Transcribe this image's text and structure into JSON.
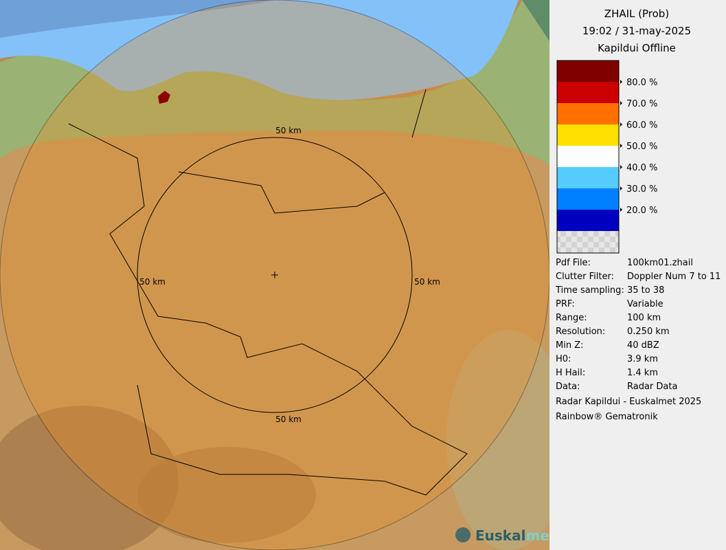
{
  "header": {
    "lines": [
      "ZHAIL (Prob)",
      "19:02 / 31-may-2025",
      "Kapildui Offline"
    ]
  },
  "legend": {
    "bands": [
      "#800000",
      "#cc0000",
      "#ff7000",
      "#ffe000",
      "#ffffff",
      "#55ccff",
      "#0080ff",
      "#0000c0"
    ],
    "labels": [
      "80.0 %",
      "70.0 %",
      "60.0 %",
      "50.0 %",
      "40.0 %",
      "30.0 %",
      "20.0 %"
    ]
  },
  "info": [
    [
      "Pdf File:",
      "100km01.zhail"
    ],
    [
      "Clutter Filter:",
      "Doppler Num 7 to 11"
    ],
    [
      "Time sampling:",
      "35 to 38"
    ],
    [
      "PRF:",
      "Variable"
    ],
    [
      "Range:",
      "100 km"
    ],
    [
      "Resolution:",
      "0.250 km"
    ],
    [
      "Min Z:",
      "40 dBZ"
    ],
    [
      "H0:",
      "3.9 km"
    ],
    [
      "H Hail:",
      "1.4 km"
    ],
    [
      "Data:",
      "Radar Data"
    ]
  ],
  "footer": [
    "Radar Kapildui - Euskalmet 2025",
    "Rainbow® Gematronik"
  ],
  "map": {
    "range_labels": [
      "50 km",
      "50 km",
      "50 km",
      "50 km"
    ],
    "watermark": [
      "Euskal",
      "met"
    ]
  }
}
